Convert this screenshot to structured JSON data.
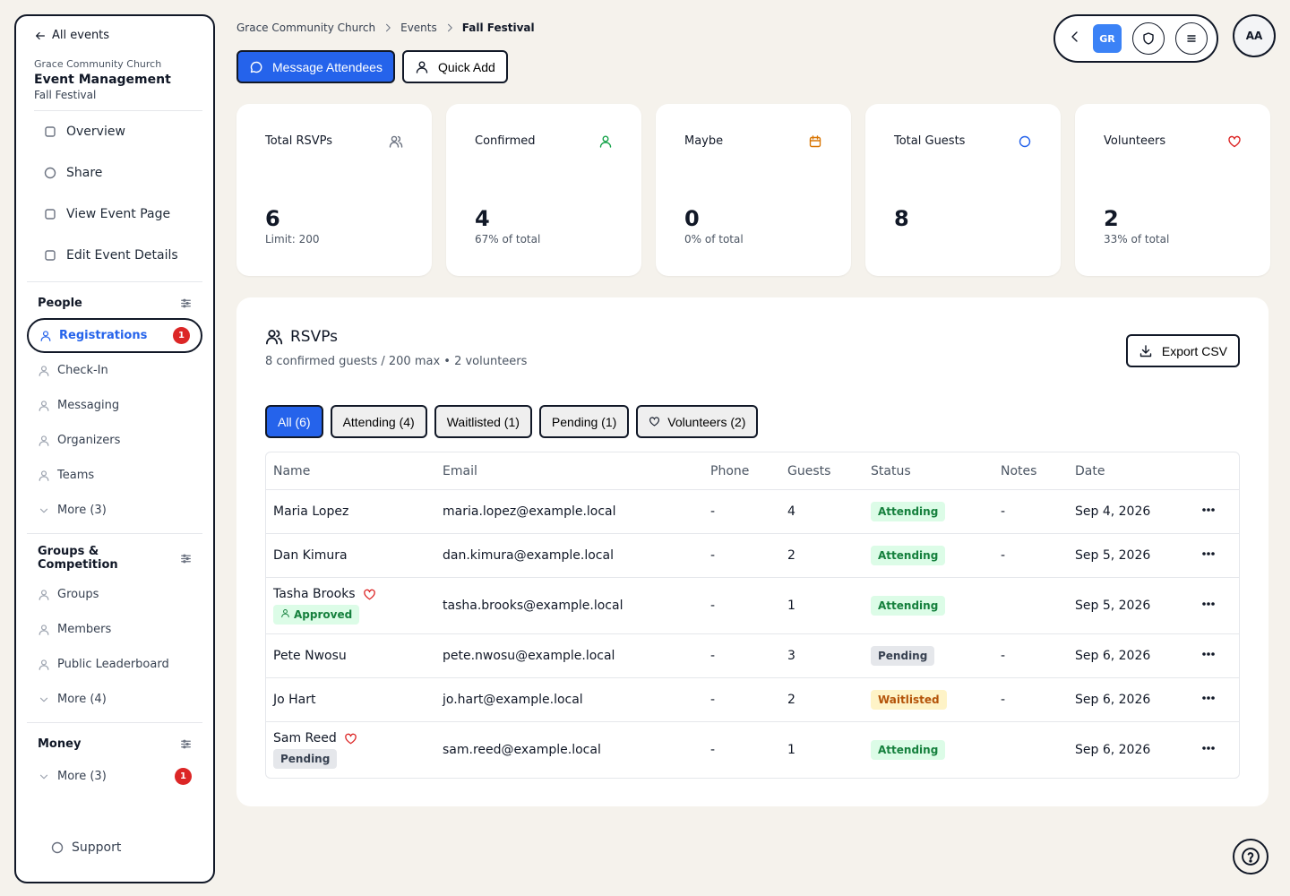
{
  "sidebar": {
    "back": "All events",
    "org": "Grace Community Church",
    "title": "Event Management",
    "event": "Fall Festival",
    "nav": [
      "Overview",
      "Share",
      "View Event Page",
      "Edit Event Details"
    ],
    "sections": [
      {
        "title": "People",
        "items": [
          {
            "label": "Registrations",
            "badge": 1,
            "active": true
          },
          {
            "label": "Check-In"
          },
          {
            "label": "Messaging"
          },
          {
            "label": "Organizers"
          },
          {
            "label": "Teams"
          },
          {
            "label": "More (3)",
            "more": true
          }
        ]
      },
      {
        "title": "Groups & Competition",
        "items": [
          {
            "label": "Groups"
          },
          {
            "label": "Members"
          },
          {
            "label": "Public Leaderboard"
          },
          {
            "label": "More (4)",
            "more": true
          }
        ]
      },
      {
        "title": "Money",
        "items": [
          {
            "label": "More (3)",
            "badge": 1,
            "more": true
          }
        ]
      }
    ],
    "support": "Support"
  },
  "breadcrumb": [
    "Grace Community Church",
    "Events",
    "Fall Festival"
  ],
  "actions": [
    "Message Attendees",
    "Quick Add"
  ],
  "topbar": {
    "workspace": "GR",
    "avatar": "AA"
  },
  "stats": [
    {
      "label": "Total RSVPs",
      "value": 6,
      "note": "Limit: 200",
      "color": "#6b7280"
    },
    {
      "label": "Confirmed",
      "value": 4,
      "note": "67% of total",
      "color": "#16a34a"
    },
    {
      "label": "Maybe",
      "value": 0,
      "note": "0% of total",
      "color": "#d97706"
    },
    {
      "label": "Total Guests",
      "value": 8,
      "color": "#2563eb"
    },
    {
      "label": "Volunteers",
      "value": 2,
      "note": "33% of total",
      "color": "#dc2626"
    }
  ],
  "rsvps": {
    "title": "RSVPs",
    "summary": "8 confirmed guests / 200 max • 2 volunteers",
    "export": "Export CSV",
    "tabs": [
      "All (6)",
      "Attending (4)",
      "Waitlisted (1)",
      "Pending (1)",
      "Volunteers (2)"
    ],
    "columns": [
      "Name",
      "Email",
      "Phone",
      "Guests",
      "Status",
      "Notes",
      "Date"
    ],
    "rows": [
      {
        "name": "Maria Lopez",
        "email": "maria.lopez@example.local",
        "phone": "-",
        "guests": 4,
        "status": "Attending",
        "notes": "-",
        "date": "Sep 4, 2026"
      },
      {
        "name": "Dan Kimura",
        "email": "dan.kimura@example.local",
        "phone": "-",
        "guests": 2,
        "status": "Attending",
        "notes": "-",
        "date": "Sep 5, 2026"
      },
      {
        "name": "Tasha Brooks",
        "volunteer": true,
        "badge": "Approved",
        "email": "tasha.brooks@example.local",
        "phone": "-",
        "guests": 1,
        "status": "Attending",
        "date": "Sep 5, 2026"
      },
      {
        "name": "Pete Nwosu",
        "email": "pete.nwosu@example.local",
        "phone": "-",
        "guests": 3,
        "status": "Pending",
        "notes": "-",
        "date": "Sep 6, 2026"
      },
      {
        "name": "Jo Hart",
        "email": "jo.hart@example.local",
        "phone": "-",
        "guests": 2,
        "status": "Waitlisted",
        "notes": "-",
        "date": "Sep 6, 2026"
      },
      {
        "name": "Sam Reed",
        "volunteer": true,
        "badge": "Pending",
        "email": "sam.reed@example.local",
        "phone": "-",
        "guests": 1,
        "status": "Attending",
        "date": "Sep 6, 2026"
      }
    ]
  }
}
